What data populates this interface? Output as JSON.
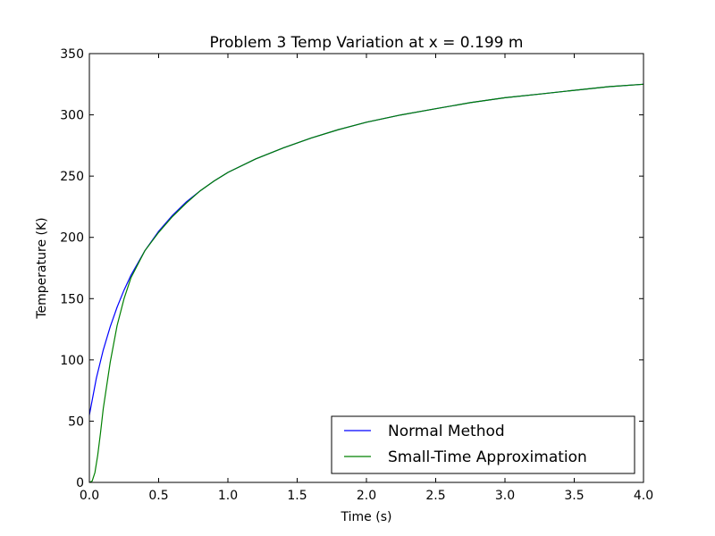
{
  "chart_data": {
    "type": "line",
    "title": "Problem 3 Temp Variation at x = 0.199 m",
    "xlabel": "Time (s)",
    "ylabel": "Temperature (K)",
    "xlim": [
      0,
      4.0
    ],
    "ylim": [
      0,
      350
    ],
    "xticks": [
      "0.0",
      "0.5",
      "1.0",
      "1.5",
      "2.0",
      "2.5",
      "3.0",
      "3.5",
      "4.0"
    ],
    "yticks": [
      "0",
      "50",
      "100",
      "150",
      "200",
      "250",
      "300",
      "350"
    ],
    "grid": false,
    "legend_position": "lower-right",
    "series": [
      {
        "name": "Normal Method",
        "color": "#0000ff",
        "x": [
          0.0,
          0.05,
          0.1,
          0.15,
          0.2,
          0.25,
          0.3,
          0.4,
          0.5,
          0.6,
          0.7,
          0.8,
          0.9,
          1.0,
          1.2,
          1.4,
          1.6,
          1.8,
          2.0,
          2.25,
          2.5,
          2.75,
          3.0,
          3.25,
          3.5,
          3.75,
          4.0
        ],
        "y": [
          55,
          85,
          108,
          127,
          143,
          157,
          169,
          189,
          205,
          218,
          229,
          238,
          246,
          253,
          264,
          273,
          281,
          288,
          294,
          300,
          305,
          310,
          314,
          317,
          320,
          323,
          325
        ]
      },
      {
        "name": "Small-Time Approximation",
        "color": "#008000",
        "x": [
          0.0,
          0.02,
          0.04,
          0.06,
          0.08,
          0.1,
          0.15,
          0.2,
          0.25,
          0.3,
          0.4,
          0.5,
          0.6,
          0.7,
          0.8,
          0.9,
          1.0,
          1.2,
          1.4,
          1.6,
          1.8,
          2.0,
          2.25,
          2.5,
          2.75,
          3.0,
          3.25,
          3.5,
          3.75,
          4.0
        ],
        "y": [
          0,
          1,
          8,
          22,
          40,
          60,
          98,
          128,
          150,
          167,
          189,
          204,
          217,
          228,
          238,
          246,
          253,
          264,
          273,
          281,
          288,
          294,
          300,
          305,
          310,
          314,
          317,
          320,
          323,
          325
        ]
      }
    ]
  }
}
